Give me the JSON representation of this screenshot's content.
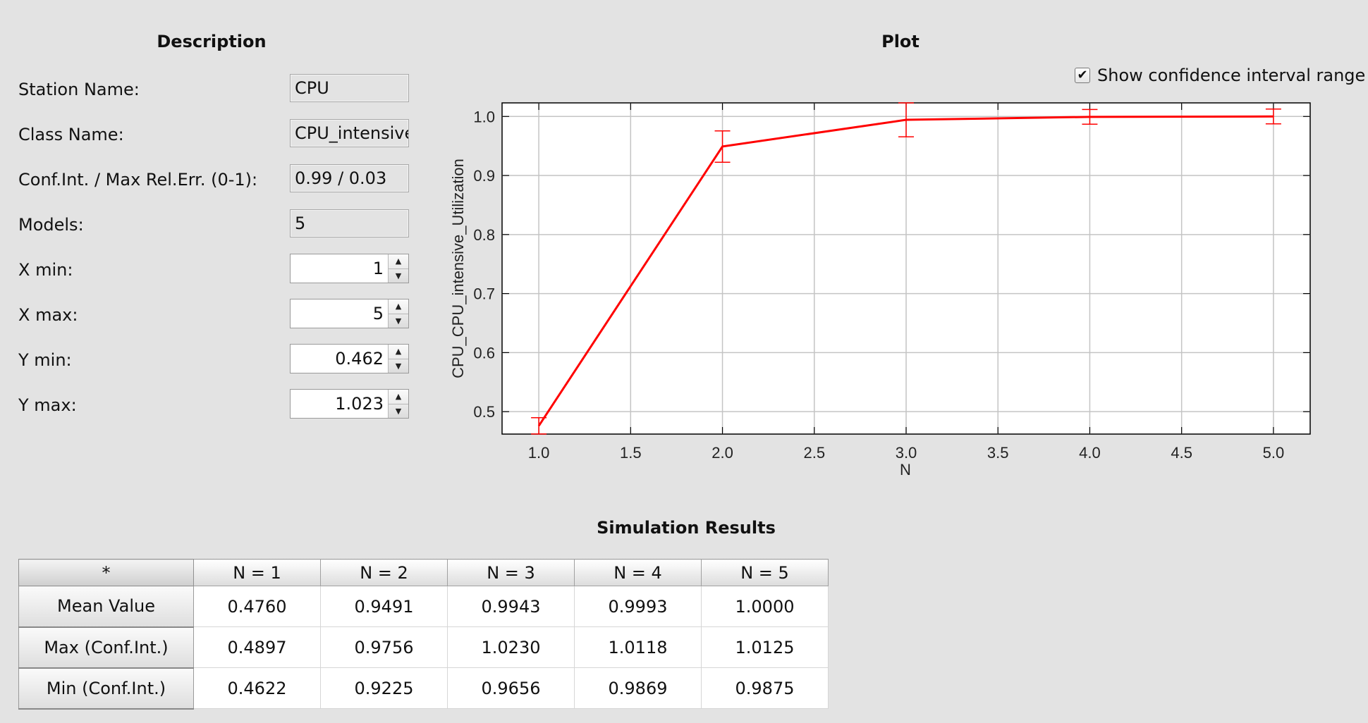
{
  "description": {
    "title": "Description",
    "fields": [
      {
        "label": "Station Name:",
        "value": "CPU"
      },
      {
        "label": "Class Name:",
        "value": "CPU_intensive"
      },
      {
        "label": "Conf.Int. / Max Rel.Err. (0-1):",
        "value": "0.99 / 0.03"
      },
      {
        "label": "Models:",
        "value": "5"
      }
    ],
    "spinners": [
      {
        "label": "X min:",
        "value": "1"
      },
      {
        "label": "X max:",
        "value": "5"
      },
      {
        "label": "Y min:",
        "value": "0.462"
      },
      {
        "label": "Y max:",
        "value": "1.023"
      }
    ]
  },
  "plot": {
    "title": "Plot",
    "show_ci_label": "Show confidence interval range",
    "show_ci_checked": true
  },
  "chart_data": {
    "type": "line",
    "xlabel": "N",
    "ylabel": "CPU_CPU_intensive_Utilization",
    "xlim": [
      0.8,
      5.2
    ],
    "ylim": [
      0.462,
      1.023
    ],
    "x_ticks": [
      "1.0",
      "1.5",
      "2.0",
      "2.5",
      "3.0",
      "3.5",
      "4.0",
      "4.5",
      "5.0"
    ],
    "y_ticks": [
      "0.5",
      "0.6",
      "0.7",
      "0.8",
      "0.9",
      "1.0"
    ],
    "grid": true,
    "series": [
      {
        "color": "#ff0000",
        "x": [
          1,
          2,
          3,
          4,
          5
        ],
        "y": [
          0.476,
          0.9491,
          0.9943,
          0.9993,
          1.0
        ],
        "ci_max": [
          0.4897,
          0.9756,
          1.023,
          1.0118,
          1.0125
        ],
        "ci_min": [
          0.4622,
          0.9225,
          0.9656,
          0.9869,
          0.9875
        ]
      }
    ]
  },
  "results": {
    "title": "Simulation Results",
    "corner": "*",
    "columns": [
      "N = 1",
      "N = 2",
      "N = 3",
      "N = 4",
      "N = 5"
    ],
    "rows": [
      {
        "label": "Mean Value",
        "values": [
          "0.4760",
          "0.9491",
          "0.9943",
          "0.9993",
          "1.0000"
        ]
      },
      {
        "label": "Max (Conf.Int.)",
        "values": [
          "0.4897",
          "0.9756",
          "1.0230",
          "1.0118",
          "1.0125"
        ]
      },
      {
        "label": "Min (Conf.Int.)",
        "values": [
          "0.4622",
          "0.9225",
          "0.9656",
          "0.9869",
          "0.9875"
        ]
      }
    ]
  }
}
